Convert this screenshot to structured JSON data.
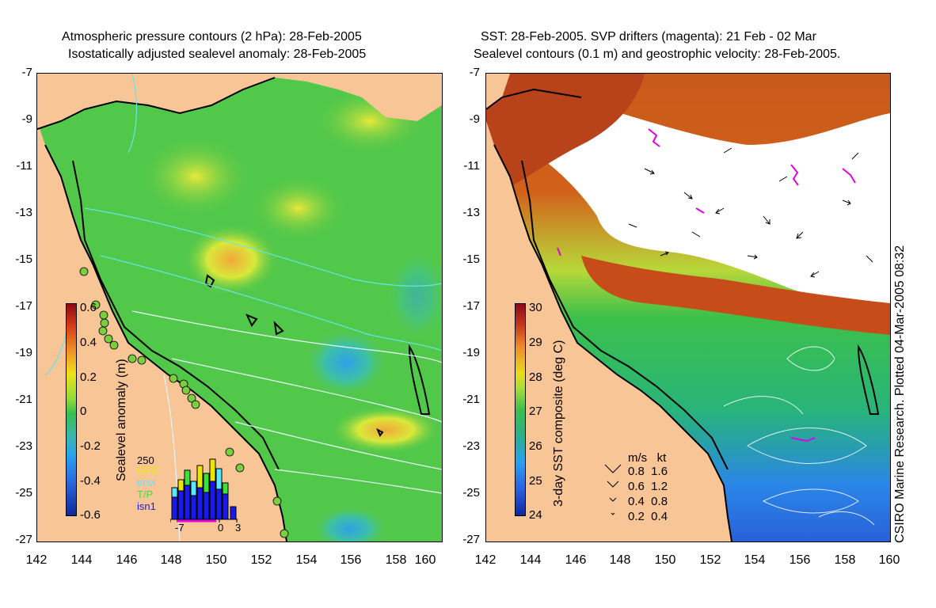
{
  "left": {
    "title1": "Atmospheric pressure contours (2 hPa): 28-Feb-2005",
    "title2": "Isostatically adjusted sealevel anomaly: 28-Feb-2005",
    "colorbar_label": "Sealevel anomaly (m)",
    "colorbar_ticks": [
      "0.6",
      "0.4",
      "0.2",
      "0",
      "-0.2",
      "-0.4",
      "-0.6"
    ],
    "hist_count": "250",
    "hist_legend": [
      "GFO",
      "envi",
      "T/P",
      "isn1"
    ],
    "hist_legend_colors": [
      "#e8e800",
      "#5be6ff",
      "#3de03d",
      "#1a1ae6"
    ],
    "hist_xticks": [
      "-7",
      "0",
      "3"
    ]
  },
  "right": {
    "title1": "SST: 28-Feb-2005. SVP drifters (magenta): 21 Feb - 02 Mar",
    "title2": "Sealevel contours (0.1 m) and geostrophic velocity: 28-Feb-2005.",
    "colorbar_label": "3-day SST composite (deg C)",
    "colorbar_ticks": [
      "30",
      "29",
      "28",
      "27",
      "26",
      "25",
      "24"
    ],
    "velocity_key_header": "m/s   kt",
    "velocity_key_rows": [
      "0.8  1.6",
      "0.6  1.2",
      "0.4  0.8",
      "0.2  0.4"
    ],
    "credit": "CSIRO Marine Research. Plotted 04-Mar-2005 08:32"
  },
  "axes": {
    "lat_ticks": [
      "-7",
      "-9",
      "-11",
      "-13",
      "-15",
      "-17",
      "-19",
      "-21",
      "-23",
      "-25",
      "-27"
    ],
    "lon_ticks": [
      "142",
      "144",
      "146",
      "148",
      "150",
      "152",
      "154",
      "156",
      "158",
      "160"
    ]
  },
  "colors": {
    "land": "#f7c596",
    "sea_green": "#52c84a",
    "coast": "#000000",
    "drifters": "#e000e0"
  }
}
